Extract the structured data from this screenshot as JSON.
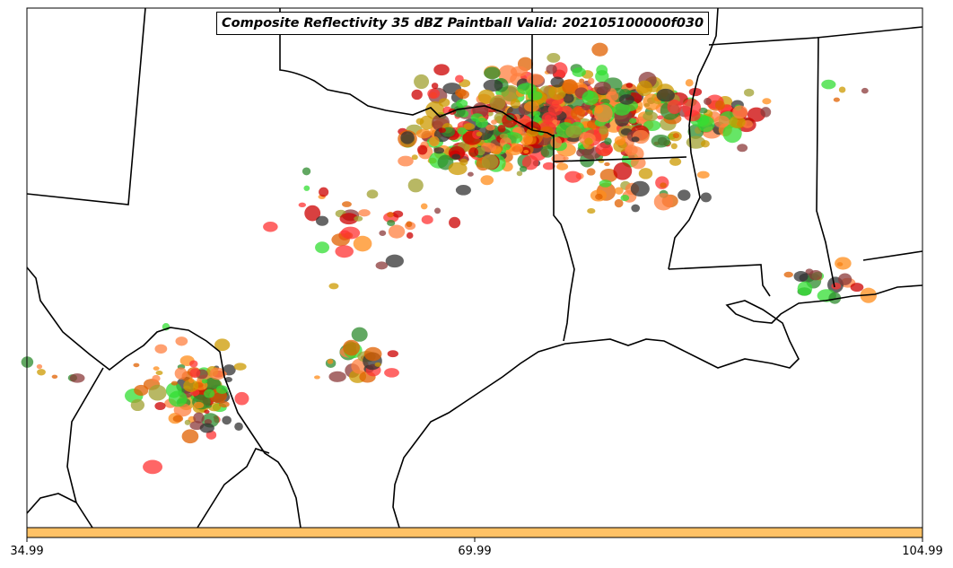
{
  "title": "Composite Reflectivity 35 dBZ Paintball Valid: 202105100000f030",
  "colorbar": {
    "ticks": [
      "34.99",
      "69.99",
      "104.99"
    ],
    "fill_color": "#ffc266"
  },
  "member_colors": [
    "#ff3333",
    "#ff8c1a",
    "#cc9900",
    "#2e8b2e",
    "#33dd33",
    "#cc0000",
    "#8b3a3a",
    "#333333",
    "#a0a030",
    "#ff8040",
    "#e06000"
  ]
}
